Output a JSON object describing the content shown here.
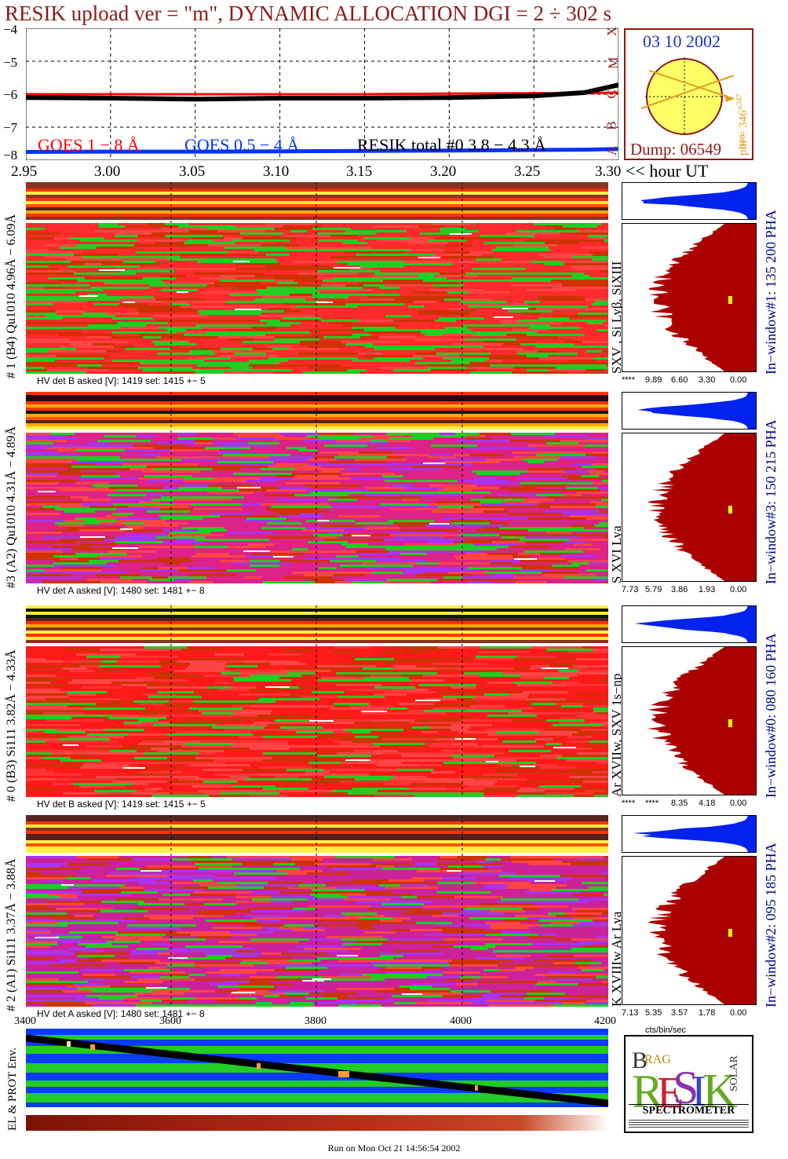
{
  "header": {
    "title": "RESIK upload ver = \"m\", DYNAMIC ALLOCATION  DGI =   2 ÷ 302 s"
  },
  "goes": {
    "y_ticks": [
      "−4",
      "−5",
      "−6",
      "−7",
      "−8"
    ],
    "legend": {
      "goes_long": "GOES 1 − 8 Å",
      "goes_short": "GOES 0.5 − 4 Å",
      "resik_total": "RESIK total #0  3.8 − 4.3 Å"
    },
    "class_letters": [
      "A",
      "B",
      "C",
      "M",
      "X"
    ],
    "colors": {
      "goes_long": "#ff0000",
      "goes_short": "#0033ff",
      "resik": "#000000"
    }
  },
  "sun": {
    "date": "03 10 2002",
    "dump": "Dump: 06549",
    "phi_label": "phi = 346°",
    "phi_sup": "347",
    "phi_low": "346",
    "disk_color": "#ffff66",
    "line_color": "#e0a020"
  },
  "time_axis": {
    "ticks": [
      "2.95",
      "3.00",
      "3.05",
      "3.10",
      "3.15",
      "3.20",
      "3.25",
      "3.30"
    ],
    "unit_label": "<< hour UT"
  },
  "channels": [
    {
      "side_label": "# 1 (B4) Qu1010 4.96Å − 6.09Å",
      "ion_label": "SXV , Si Lyβ, SiXIII",
      "window_label": "In−window#1:  135 200 PHA",
      "hv": "HV det B asked [V]:  1419 set:  1415  +−    5",
      "pha_ticks": [
        "****",
        "9.89",
        "6.60",
        "3.30",
        "0.00"
      ],
      "base_color": "#ff2a2a",
      "accent_color": "#22cc22"
    },
    {
      "side_label": "#3 (A2) Qu1010  4.31Å − 4.89Å",
      "ion_label": "S XVI Lya",
      "window_label": "In−window#3:  150 215 PHA",
      "hv": "HV det A asked [V]:  1480 set:  1481  +−    8",
      "pha_ticks": [
        "7.73",
        "5.79",
        "3.86",
        "1.93",
        "0.00"
      ],
      "base_color": "#dd2288",
      "accent_color": "#aa33ee"
    },
    {
      "side_label": "# 0 (B3) Si111  3.82Å − 4.33Å",
      "ion_label": "Ar XVIIw,  SXV 1s−np",
      "window_label": "In−window#0:  080 160 PHA",
      "hv": "HV det B asked [V]:  1419 set:  1415  +−    5",
      "pha_ticks": [
        "****",
        "****",
        "8.35",
        "4.18",
        "0.00"
      ],
      "base_color": "#ff1a1a",
      "accent_color": "#ff3333"
    },
    {
      "side_label": "# 2 (A1) Si111  3.37Å − 3.88Å",
      "ion_label": "K XVIIIw  Ar Lya",
      "window_label": "In−window#2:  095 185 PHA",
      "hv": "HV det A asked [V]:  1480 set:  1481  +−    8",
      "pha_ticks": [
        "7.13",
        "5.35",
        "3.57",
        "1.78",
        "0.00"
      ],
      "base_color": "#cc2299",
      "accent_color": "#aa33ee"
    }
  ],
  "pha_axis_label": "cts/bin/sec",
  "env": {
    "side_label": "EL & PROT Env.",
    "ticks": [
      "3400",
      "3600",
      "3800",
      "4000",
      "4200"
    ]
  },
  "logo": {
    "letters": "BRAGG RESIK SOLAR",
    "spectrometer": "SPECTROMETER"
  },
  "footer": {
    "run_text": "Run on Mon Oct 21 14:56:54 2002"
  },
  "chart_data": [
    {
      "type": "line",
      "title": "RESIK upload ver = \"m\", DYNAMIC ALLOCATION  DGI =   2 ÷ 302 s",
      "xlabel": "<< hour UT",
      "ylabel": "",
      "xlim": [
        2.95,
        3.3
      ],
      "ylim": [
        -8,
        -4
      ],
      "x": [
        2.95,
        3.0,
        3.05,
        3.1,
        3.15,
        3.2,
        3.25,
        3.28,
        3.3
      ],
      "series": [
        {
          "name": "GOES 1 − 8 Å",
          "values": [
            -6.0,
            -6.0,
            -6.0,
            -6.0,
            -6.0,
            -5.98,
            -5.97,
            -5.97,
            -5.95
          ]
        },
        {
          "name": "GOES 0.5 − 4 Å",
          "values": [
            -7.75,
            -7.74,
            -7.74,
            -7.73,
            -7.72,
            -7.71,
            -7.69,
            -7.68,
            -7.66
          ]
        },
        {
          "name": "RESIK total #0  3.8 − 4.3 Å",
          "values": [
            -6.1,
            -6.12,
            -6.15,
            -6.12,
            -6.12,
            -6.1,
            -6.05,
            -5.95,
            -5.72
          ]
        }
      ]
    }
  ]
}
